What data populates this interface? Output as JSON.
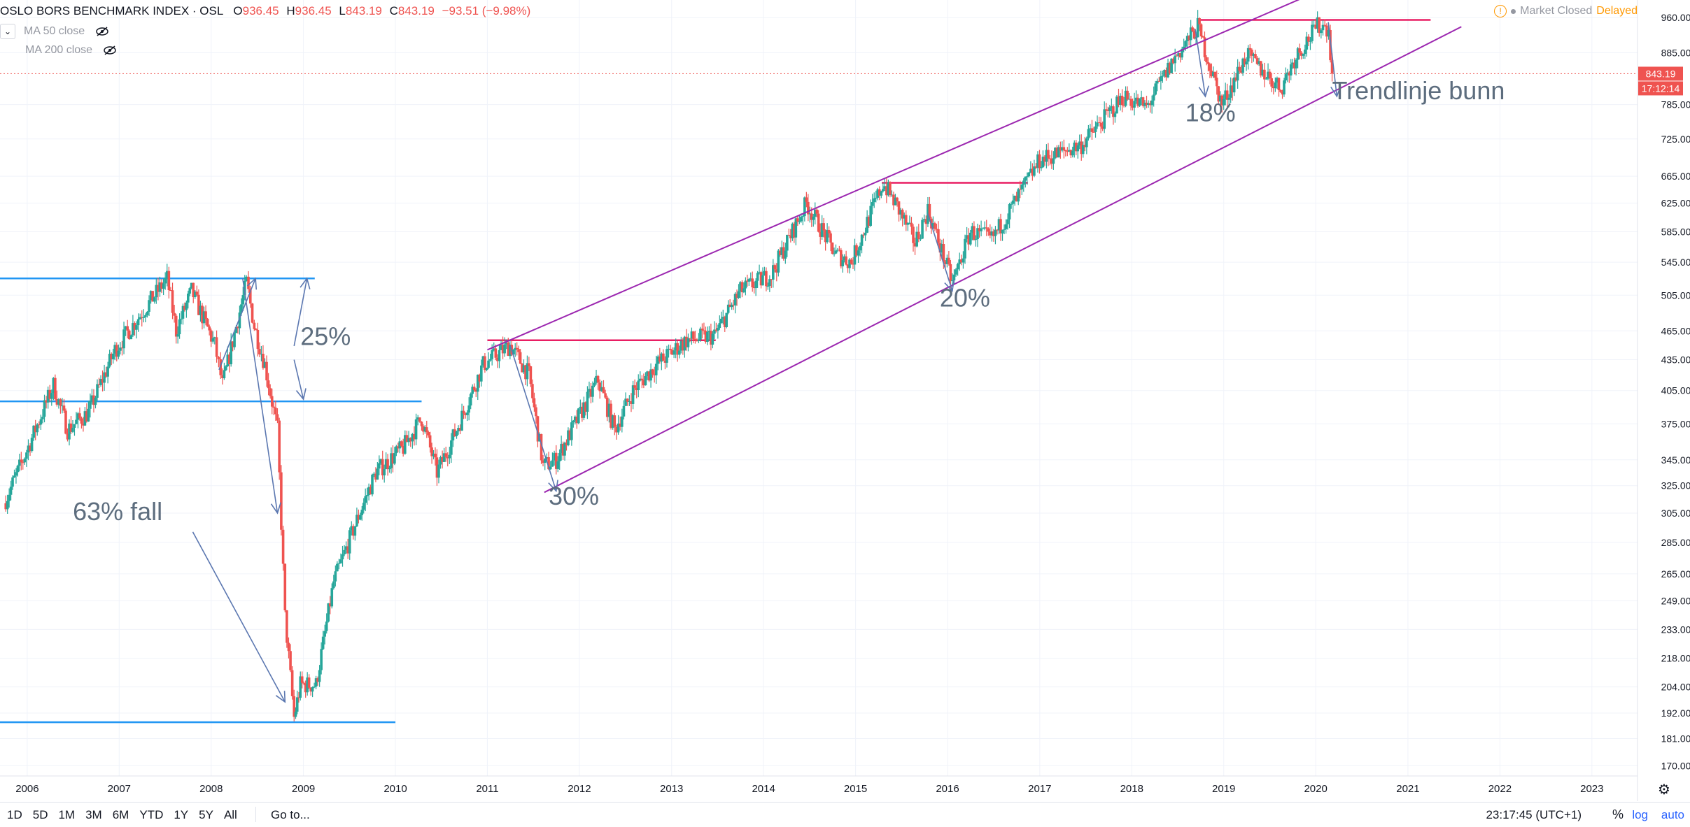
{
  "legend": {
    "title": "OSLO BORS BENCHMARK INDEX · OSL",
    "o_label": "O",
    "o_value": "936.45",
    "h_label": "H",
    "h_value": "936.45",
    "l_label": "L",
    "l_value": "843.19",
    "c_label": "C",
    "c_value": "843.19",
    "change": "−93.51 (−9.98%)",
    "ma50": "MA 50 close",
    "ma200": "MA 200 close"
  },
  "status": {
    "market": "Market Closed",
    "delayed": "Delayed"
  },
  "bottom": {
    "ranges": [
      "1D",
      "5D",
      "1M",
      "3M",
      "6M",
      "YTD",
      "1Y",
      "5Y",
      "All"
    ],
    "goto": "Go to...",
    "clock": "23:17:45 (UTC+1)",
    "percent": "%",
    "log": "log",
    "auto": "auto"
  },
  "colors": {
    "up": "#26a69a",
    "down": "#ef5350",
    "channel": "#9c27b0",
    "resistance": "#e91e63",
    "support": "#2196f3",
    "arrow": "#5b77b0",
    "annotation": "#5d6d7e",
    "price_tag": "#ef5350"
  },
  "chart_data": {
    "type": "candlestick",
    "title": "OSLO BORS BENCHMARK INDEX · OSL",
    "y_scale": "log",
    "ylim": [
      166,
      1000
    ],
    "xlim": [
      "2005-09-15",
      "2023-07-01"
    ],
    "y_ticks": [
      "960.00",
      "885.00",
      "843.19",
      "785.00",
      "725.00",
      "665.00",
      "625.00",
      "585.00",
      "545.00",
      "505.00",
      "465.00",
      "435.00",
      "405.00",
      "375.00",
      "345.00",
      "325.00",
      "305.00",
      "285.00",
      "265.00",
      "249.00",
      "233.00",
      "218.00",
      "204.00",
      "192.00",
      "181.00",
      "170.00"
    ],
    "x_ticks": [
      "2006",
      "2007",
      "2008",
      "2009",
      "2010",
      "2011",
      "2012",
      "2013",
      "2014",
      "2015",
      "2016",
      "2017",
      "2018",
      "2019",
      "2020",
      "2021",
      "2022",
      "2023"
    ],
    "last_price": {
      "value": 843.19,
      "label": "843.19",
      "countdown": "17:12:14"
    },
    "weekly_close_path": [
      [
        "2005-10-01",
        312
      ],
      [
        "2005-12-15",
        345
      ],
      [
        "2006-04-15",
        410
      ],
      [
        "2006-06-10",
        370
      ],
      [
        "2006-09-01",
        385
      ],
      [
        "2006-12-15",
        445
      ],
      [
        "2007-04-01",
        485
      ],
      [
        "2007-07-10",
        525
      ],
      [
        "2007-08-15",
        465
      ],
      [
        "2007-10-15",
        510
      ],
      [
        "2008-01-15",
        450
      ],
      [
        "2008-02-15",
        410
      ],
      [
        "2008-05-20",
        520
      ],
      [
        "2008-06-20",
        470
      ],
      [
        "2008-08-01",
        430
      ],
      [
        "2008-09-20",
        370
      ],
      [
        "2008-10-20",
        240
      ],
      [
        "2008-11-25",
        190
      ],
      [
        "2008-12-20",
        205
      ],
      [
        "2009-02-20",
        205
      ],
      [
        "2009-05-01",
        260
      ],
      [
        "2009-08-01",
        300
      ],
      [
        "2009-10-15",
        335
      ],
      [
        "2010-02-01",
        355
      ],
      [
        "2010-04-15",
        380
      ],
      [
        "2010-06-15",
        335
      ],
      [
        "2010-09-01",
        370
      ],
      [
        "2010-12-15",
        430
      ],
      [
        "2011-04-01",
        450
      ],
      [
        "2011-06-15",
        420
      ],
      [
        "2011-08-10",
        340
      ],
      [
        "2011-10-01",
        345
      ],
      [
        "2011-12-15",
        375
      ],
      [
        "2012-03-15",
        415
      ],
      [
        "2012-05-20",
        370
      ],
      [
        "2012-08-01",
        405
      ],
      [
        "2012-11-01",
        430
      ],
      [
        "2013-03-01",
        455
      ],
      [
        "2013-06-20",
        460
      ],
      [
        "2013-10-01",
        510
      ],
      [
        "2014-02-01",
        530
      ],
      [
        "2014-06-20",
        625
      ],
      [
        "2014-10-15",
        555
      ],
      [
        "2014-12-15",
        545
      ],
      [
        "2015-04-20",
        655
      ],
      [
        "2015-06-15",
        620
      ],
      [
        "2015-08-25",
        570
      ],
      [
        "2015-10-15",
        615
      ],
      [
        "2016-01-20",
        520
      ],
      [
        "2016-04-01",
        585
      ],
      [
        "2016-06-25",
        575
      ],
      [
        "2016-10-01",
        630
      ],
      [
        "2016-12-31",
        690
      ],
      [
        "2017-06-15",
        715
      ],
      [
        "2017-12-01",
        800
      ],
      [
        "2018-03-01",
        780
      ],
      [
        "2018-06-15",
        870
      ],
      [
        "2018-09-20",
        940
      ],
      [
        "2018-12-25",
        785
      ],
      [
        "2019-04-01",
        880
      ],
      [
        "2019-08-15",
        815
      ],
      [
        "2019-10-15",
        880
      ],
      [
        "2020-01-15",
        945
      ],
      [
        "2020-02-21",
        936.45
      ],
      [
        "2020-03-06",
        843.19
      ]
    ],
    "channel_upper": [
      [
        "2011-01-01",
        445
      ],
      [
        "2019-12-01",
        1010
      ]
    ],
    "channel_lower": [
      [
        "2011-08-15",
        320
      ],
      [
        "2021-08-01",
        940
      ]
    ],
    "resistance_lines": [
      {
        "from": [
          "2011-01-01",
          455
        ],
        "to": [
          "2013-06-25",
          455
        ]
      },
      {
        "from": [
          "2015-04-15",
          655
        ],
        "to": [
          "2016-11-15",
          655
        ]
      },
      {
        "from": [
          "2018-09-25",
          955
        ],
        "to": [
          "2021-04-01",
          955
        ]
      }
    ],
    "support_lines": [
      {
        "from": [
          "2005-09-15",
          525
        ],
        "to": [
          "2009-02-15",
          525
        ]
      },
      {
        "from": [
          "2005-09-15",
          395
        ],
        "to": [
          "2010-04-15",
          395
        ]
      },
      {
        "from": [
          "2005-09-15",
          188
        ],
        "to": [
          "2010-01-01",
          188
        ]
      }
    ],
    "arrows": [
      {
        "from": [
          "2008-05-05",
          525
        ],
        "to": [
          "2008-09-20",
          305
        ]
      },
      {
        "from": [
          "2008-02-01",
          425
        ],
        "to": [
          "2008-06-25",
          525
        ]
      },
      {
        "from": [
          "2007-10-20",
          292
        ],
        "to": [
          "2008-10-20",
          197
        ]
      },
      {
        "from": [
          "2008-11-25",
          449
        ],
        "to": [
          "2009-01-15",
          525
        ]
      },
      {
        "from": [
          "2008-11-25",
          435
        ],
        "to": [
          "2009-01-01",
          397
        ]
      },
      {
        "from": [
          "2011-04-01",
          450
        ],
        "to": [
          "2011-10-01",
          321
        ]
      },
      {
        "from": [
          "2015-10-15",
          610
        ],
        "to": [
          "2016-01-20",
          510
        ]
      },
      {
        "from": [
          "2018-09-10",
          935
        ],
        "to": [
          "2018-10-20",
          800
        ]
      },
      {
        "from": [
          "2020-02-20",
          950
        ],
        "to": [
          "2020-03-25",
          800
        ]
      }
    ],
    "annotations": [
      {
        "text": "63% fall",
        "x": "2006-07-01",
        "y": 300
      },
      {
        "text": "25%",
        "x": "2008-12-20",
        "y": 450
      },
      {
        "text": "30%",
        "x": "2011-09-01",
        "y": 311
      },
      {
        "text": "20%",
        "x": "2015-12-01",
        "y": 492
      },
      {
        "text": "18%",
        "x": "2018-08-01",
        "y": 755
      },
      {
        "text": "Trendlinje bunn",
        "x": "2020-03-06",
        "y": 795
      }
    ]
  }
}
